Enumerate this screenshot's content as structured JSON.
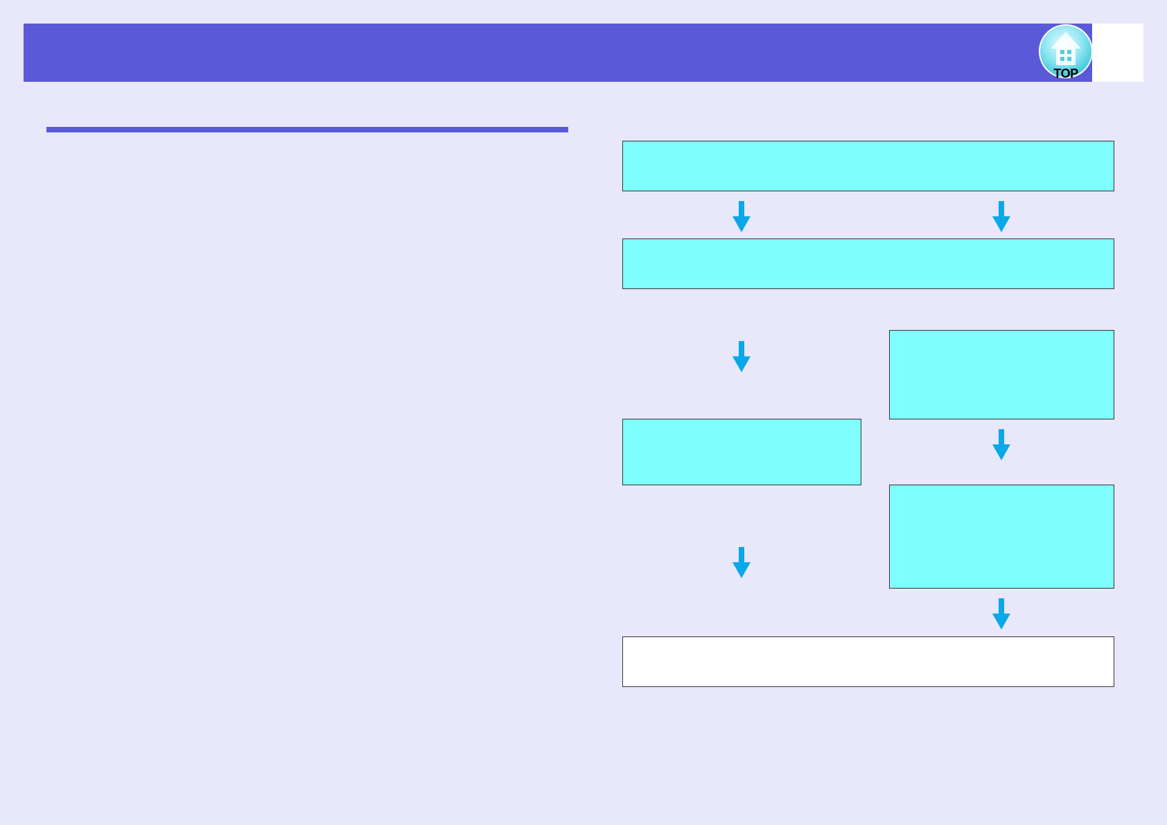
{
  "header": {
    "title": "",
    "page_number": "",
    "top_button_label": "TOP",
    "colors": {
      "band": "#5a5ad8",
      "background": "#e8e8fa"
    }
  },
  "flowchart": {
    "box_color": "#80ffff",
    "final_box_color": "#ffffff",
    "arrow_color": "#0aa8e8",
    "boxes": [
      {
        "text": ""
      },
      {
        "text": ""
      },
      {
        "text": ""
      },
      {
        "text": ""
      },
      {
        "text": ""
      },
      {
        "text": ""
      }
    ]
  }
}
